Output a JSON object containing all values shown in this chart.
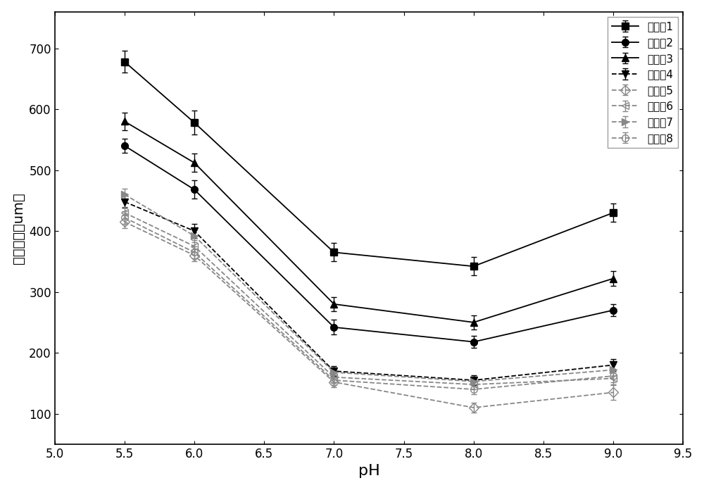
{
  "x": [
    5.5,
    6.0,
    7.0,
    8.0,
    9.0
  ],
  "series": [
    {
      "label": "实施例1",
      "y": [
        678,
        578,
        365,
        342,
        430
      ],
      "yerr": [
        18,
        20,
        15,
        15,
        15
      ],
      "marker": "s",
      "fillstyle": "full",
      "color": "#000000",
      "linestyle": "-"
    },
    {
      "label": "实施例2",
      "y": [
        540,
        468,
        242,
        218,
        270
      ],
      "yerr": [
        12,
        15,
        12,
        10,
        10
      ],
      "marker": "o",
      "fillstyle": "full",
      "color": "#000000",
      "linestyle": "-"
    },
    {
      "label": "实施例3",
      "y": [
        580,
        512,
        280,
        250,
        322
      ],
      "yerr": [
        14,
        15,
        12,
        12,
        12
      ],
      "marker": "^",
      "fillstyle": "full",
      "color": "#000000",
      "linestyle": "-"
    },
    {
      "label": "实施例4",
      "y": [
        448,
        400,
        170,
        155,
        180
      ],
      "yerr": [
        10,
        12,
        8,
        8,
        10
      ],
      "marker": "v",
      "fillstyle": "full",
      "color": "#000000",
      "linestyle": "--"
    },
    {
      "label": "实施例5",
      "y": [
        415,
        360,
        152,
        110,
        135
      ],
      "yerr": [
        10,
        10,
        8,
        8,
        12
      ],
      "marker": "D",
      "fillstyle": "none",
      "color": "#888888",
      "linestyle": "--"
    },
    {
      "label": "实施例6",
      "y": [
        430,
        375,
        160,
        148,
        158
      ],
      "yerr": [
        10,
        10,
        8,
        8,
        10
      ],
      "marker": "<",
      "fillstyle": "none",
      "color": "#888888",
      "linestyle": "--"
    },
    {
      "label": "实施例7",
      "y": [
        460,
        392,
        168,
        153,
        172
      ],
      "yerr": [
        10,
        10,
        8,
        8,
        10
      ],
      "marker": ">",
      "fillstyle": "full",
      "color": "#888888",
      "linestyle": "--"
    },
    {
      "label": "实施例8",
      "y": [
        422,
        365,
        155,
        140,
        162
      ],
      "yerr": [
        10,
        10,
        8,
        8,
        10
      ],
      "marker": "o",
      "fillstyle": "none",
      "color": "#888888",
      "linestyle": "--"
    }
  ],
  "xlabel": "pH",
  "ylabel": "絮凝粒径（um）",
  "xlim": [
    5.0,
    9.5
  ],
  "ylim": [
    50,
    760
  ],
  "yticks": [
    100,
    200,
    300,
    400,
    500,
    600,
    700
  ],
  "xticks": [
    5.0,
    5.5,
    6.0,
    6.5,
    7.0,
    7.5,
    8.0,
    8.5,
    9.0,
    9.5
  ],
  "background_color": "#ffffff",
  "linewidth": 1.3,
  "markersize": 7
}
